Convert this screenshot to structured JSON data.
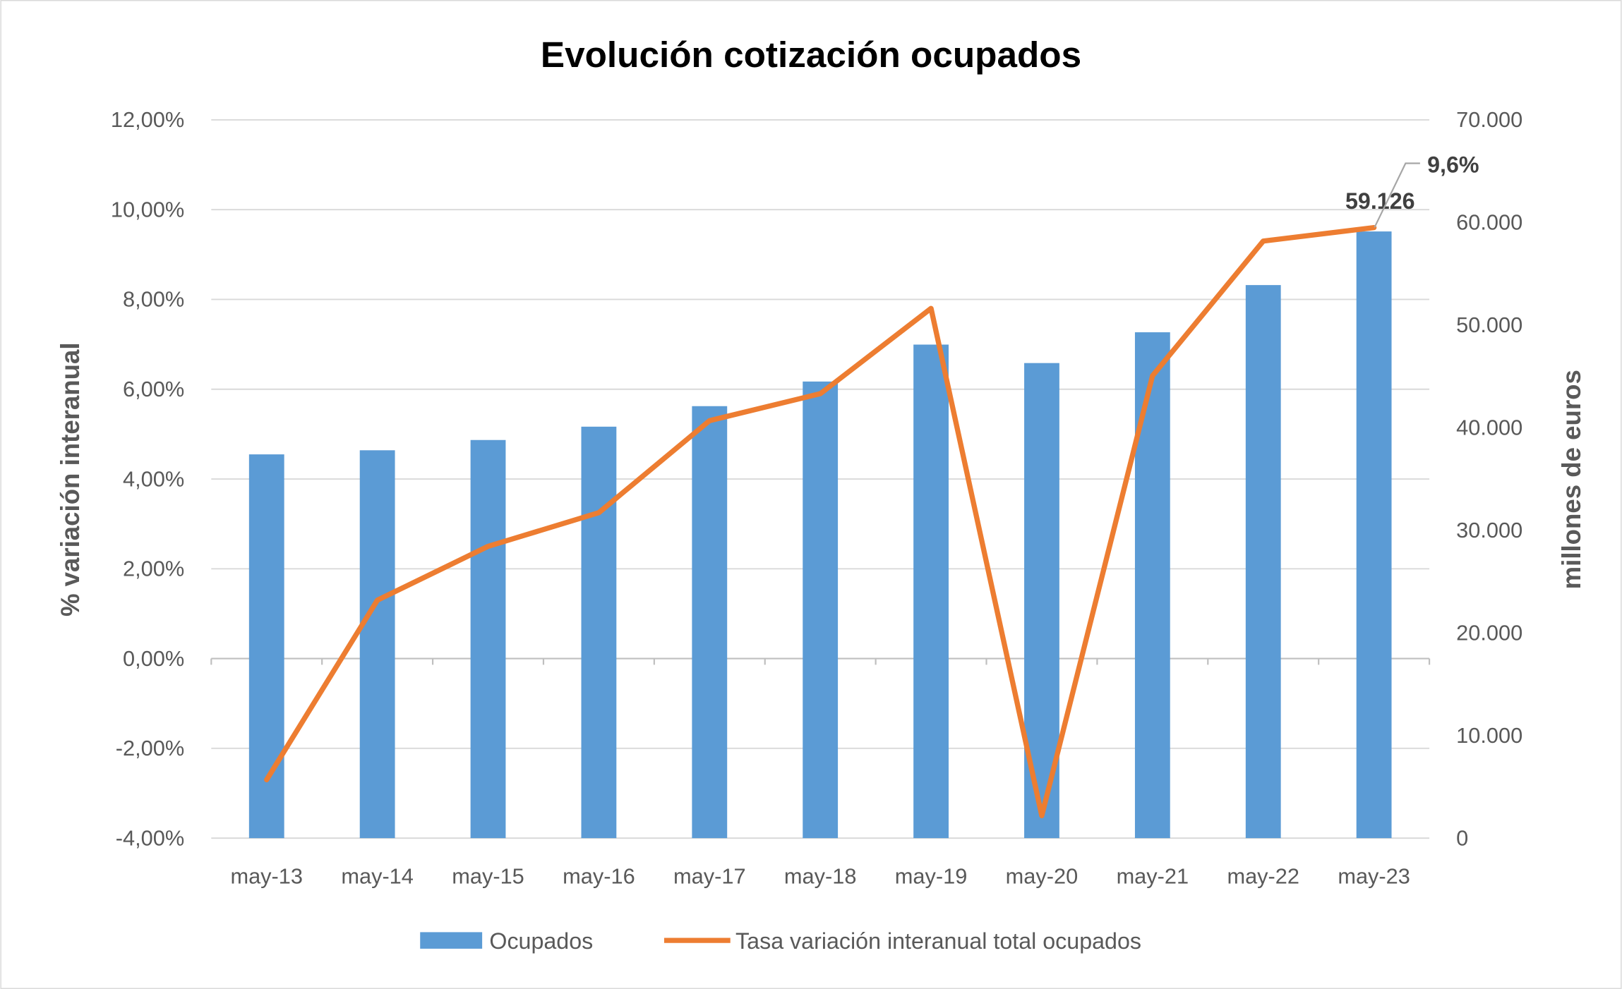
{
  "chart_data": {
    "type": "bar+line",
    "title": "Evolución cotización ocupados",
    "categories": [
      "may-13",
      "may-14",
      "may-15",
      "may-16",
      "may-17",
      "may-18",
      "may-19",
      "may-20",
      "may-21",
      "may-22",
      "may-23"
    ],
    "series": [
      {
        "name": "Ocupados",
        "type": "bar",
        "axis": "right",
        "color": "#5B9BD5",
        "values": [
          37400,
          37800,
          38800,
          40100,
          42100,
          44500,
          48100,
          46300,
          49300,
          53900,
          59126
        ]
      },
      {
        "name": "Tasa variación interanual total ocupados",
        "type": "line",
        "axis": "left",
        "color": "#ED7D31",
        "values": [
          -2.7,
          1.3,
          2.5,
          3.25,
          5.3,
          5.9,
          7.8,
          -3.5,
          6.3,
          9.3,
          9.6
        ]
      }
    ],
    "ylabel_left": "% variación interanual",
    "ylabel_right": "millones de euros",
    "ylim_left": [
      -4,
      12
    ],
    "ylim_right": [
      0,
      70000
    ],
    "yticks_left": [
      "12,00%",
      "10,00%",
      "8,00%",
      "6,00%",
      "4,00%",
      "2,00%",
      "0,00%",
      "-2,00%",
      "-4,00%"
    ],
    "yticks_right": [
      "70.000",
      "60.000",
      "50.000",
      "40.000",
      "30.000",
      "20.000",
      "10.000",
      "0"
    ],
    "data_labels": {
      "bar_last": "59.126",
      "line_last": "9,6%"
    },
    "grid": true,
    "legend": "bottom"
  }
}
